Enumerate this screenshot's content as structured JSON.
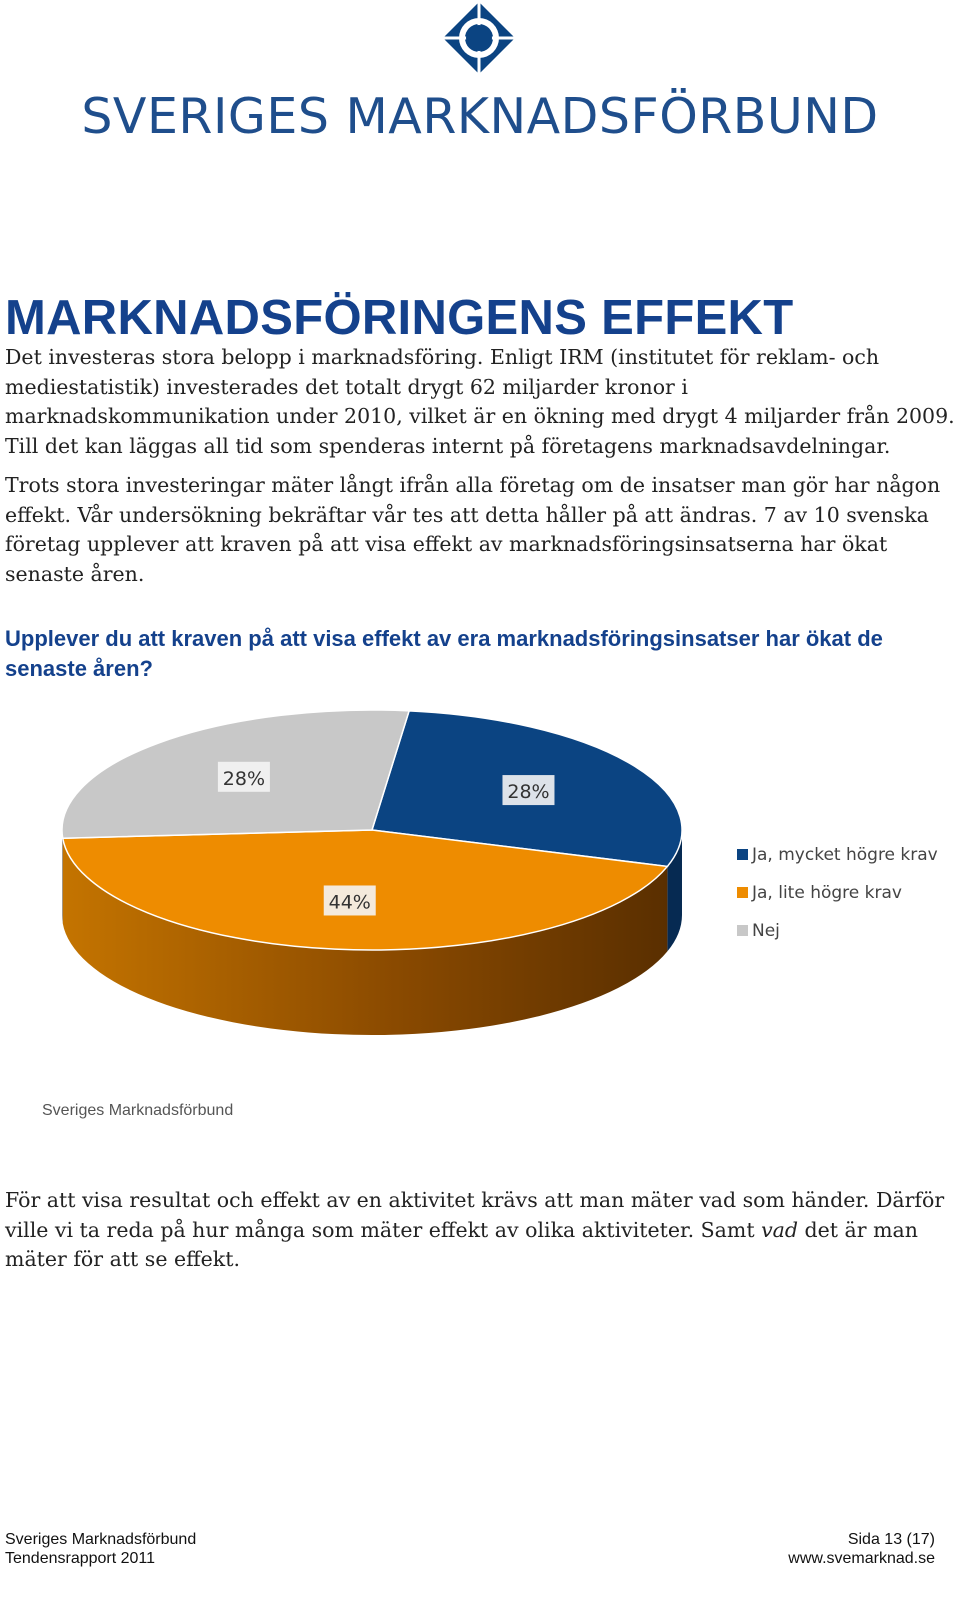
{
  "header": {
    "logo_text": "SVERIGES MARKNADSFÖRBUND"
  },
  "page_title": "MARKNADSFÖRINGENS EFFEKT",
  "paragraph_1": "Det investeras stora belopp i marknadsföring. Enligt IRM (institutet för reklam- och mediestatistik) investerades det totalt drygt 62 miljarder kronor i marknadskommunikation under 2010, vilket är en ökning med drygt 4 miljarder från 2009. Till det kan läggas all tid som spenderas internt på företagens marknadsavdelningar.",
  "paragraph_2": "Trots stora investeringar mäter långt ifrån alla företag om de insatser man gör har någon effekt. Vår undersökning bekräftar vår tes att detta håller på att ändras. 7 av 10 svenska företag upplever att kraven på att visa effekt av marknadsföringsinsatserna har ökat senaste åren.",
  "question": "Upplever du att kraven på att visa effekt av era marknadsföringsinsatser har ökat de senaste åren?",
  "chart_data": {
    "type": "pie",
    "title": "",
    "categories": [
      "Ja, mycket högre krav",
      "Ja, lite högre krav",
      "Nej"
    ],
    "values": [
      28,
      44,
      28
    ],
    "labels": [
      "28%",
      "44%",
      "28%"
    ],
    "colors": [
      "#0b4482",
      "#ee8c00",
      "#c8c8c8"
    ],
    "side_colors": [
      "#062a52",
      "#8a4a00",
      "#8c8c8c"
    ],
    "legend_position": "right",
    "style": "3d",
    "source_label": "Sveriges Marknadsförbund"
  },
  "paragraph_3": {
    "before": "För att visa resultat och effekt av en aktivitet krävs att man mäter vad som händer. Därför ville vi ta reda på hur många som mäter effekt av olika aktiviteter. Samt ",
    "emph": "vad",
    "after": " det är man mäter för att se effekt."
  },
  "footer": {
    "org": "Sveriges Marknadsförbund",
    "report": "Tendensrapport 2011",
    "page": "Sida 13 (17)",
    "website": "www.svemarknad.se"
  }
}
